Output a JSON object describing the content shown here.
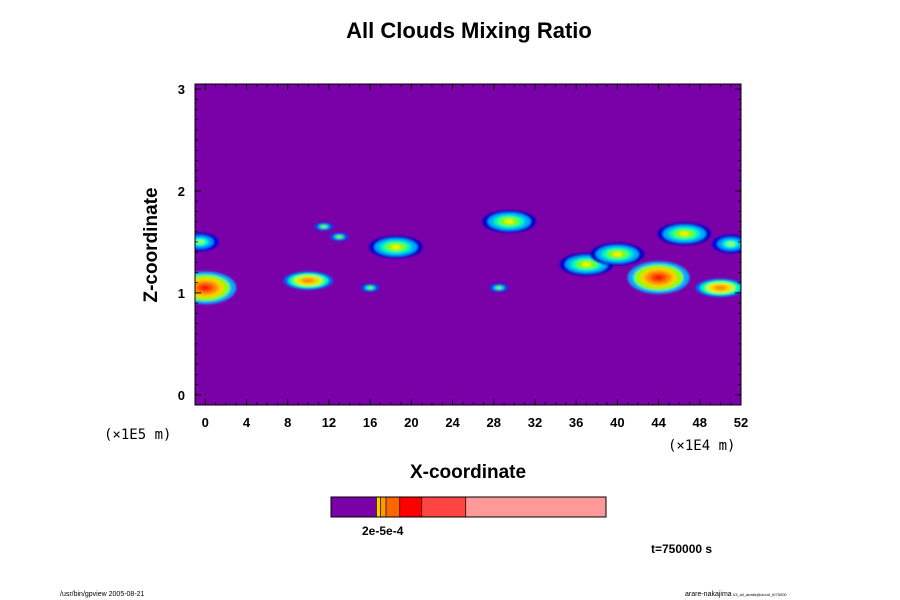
{
  "chart_data": {
    "type": "heatmap",
    "title": "All Clouds Mixing Ratio",
    "xlabel": "X-coordinate",
    "ylabel": "Z-coordinate",
    "x_unit": "(×1E4 m)",
    "z_unit": "(×1E5 m)",
    "xlim": [
      -1,
      52
    ],
    "ylim": [
      -0.1,
      3.05
    ],
    "xticks": [
      0,
      4,
      8,
      12,
      16,
      20,
      24,
      28,
      32,
      36,
      40,
      44,
      48,
      52
    ],
    "xtick_labels": [
      "0",
      "4",
      "8",
      "12",
      "16",
      "20",
      "24",
      "28",
      "32",
      "36",
      "40",
      "44",
      "48",
      "52"
    ],
    "yticks": [
      0,
      1,
      2,
      3
    ],
    "ytick_labels": [
      "0",
      "1",
      "2",
      "3"
    ],
    "background_color": "#7a00a8",
    "colorbar": {
      "label": "2e-5e-4",
      "colors": [
        "#7a00a8",
        "#ffcc00",
        "#ff9900",
        "#ff6600",
        "#ff0000",
        "#ff4444",
        "#ff9999"
      ]
    },
    "time_label": "t=750000 s",
    "cloud_features": [
      {
        "x": -0.5,
        "z": 1.5,
        "intensity": "low",
        "note": "left edge upper"
      },
      {
        "x": 0,
        "z": 1.05,
        "intensity": "high"
      },
      {
        "x": 10,
        "z": 1.12,
        "intensity": "mid-high"
      },
      {
        "x": 11.5,
        "z": 1.65,
        "intensity": "trace"
      },
      {
        "x": 13,
        "z": 1.55,
        "intensity": "trace"
      },
      {
        "x": 16,
        "z": 1.05,
        "intensity": "trace"
      },
      {
        "x": 18.5,
        "z": 1.45,
        "intensity": "mid"
      },
      {
        "x": 29.5,
        "z": 1.7,
        "intensity": "mid"
      },
      {
        "x": 28.5,
        "z": 1.05,
        "intensity": "trace"
      },
      {
        "x": 37,
        "z": 1.28,
        "intensity": "mid"
      },
      {
        "x": 40,
        "z": 1.38,
        "intensity": "mid"
      },
      {
        "x": 44,
        "z": 1.15,
        "intensity": "high"
      },
      {
        "x": 46.5,
        "z": 1.58,
        "intensity": "mid"
      },
      {
        "x": 51,
        "z": 1.48,
        "intensity": "low",
        "note": "right edge upper"
      },
      {
        "x": 50,
        "z": 1.05,
        "intensity": "mid-high"
      }
    ]
  },
  "footer": {
    "left": "/usr/bin/gpview 2005-08-21",
    "right": "arare-nakajima",
    "right_small": "03_all_analis@cloud_t075000"
  }
}
